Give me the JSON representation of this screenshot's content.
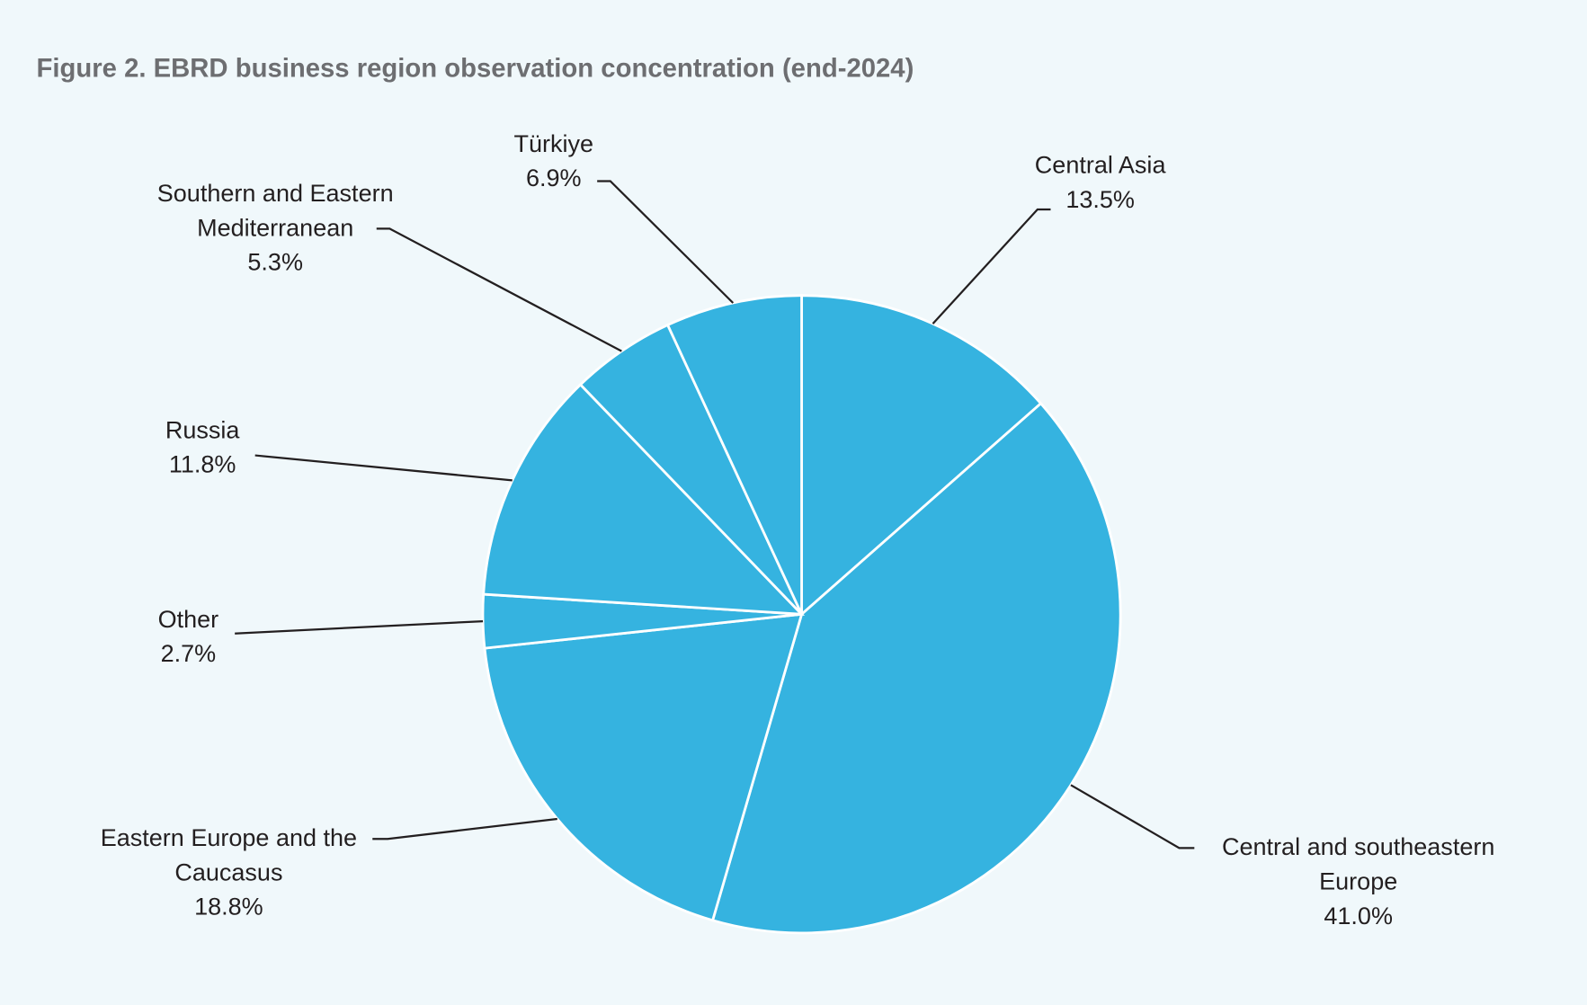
{
  "chart_data": {
    "type": "pie",
    "title": "Figure 2. EBRD business region observation concentration (end-2024)",
    "categories": [
      "Central Asia",
      "Central and southeastern Europe",
      "Eastern Europe and the Caucasus",
      "Other",
      "Russia",
      "Southern and Eastern Mediterranean",
      "Türkiye"
    ],
    "values": [
      13.5,
      41.0,
      18.8,
      2.7,
      11.8,
      5.3,
      6.9
    ],
    "value_labels": [
      "13.5%",
      "41.0%",
      "18.8%",
      "2.7%",
      "11.8%",
      "5.3%",
      "6.9%"
    ],
    "color": "#35b3e0"
  }
}
